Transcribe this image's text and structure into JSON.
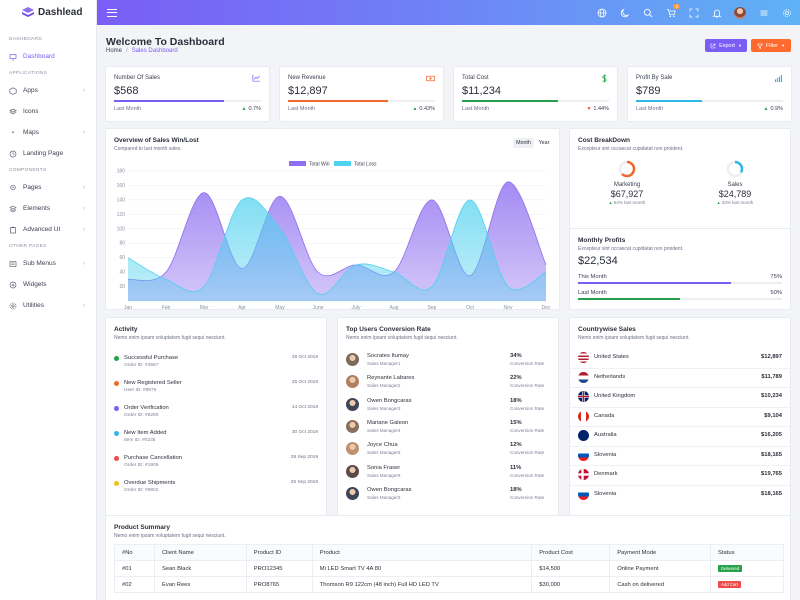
{
  "brand": {
    "name": "Dashlead"
  },
  "header": {
    "notification_count": "3"
  },
  "sidebar": {
    "sections": [
      {
        "title": "DASHBOARD",
        "items": [
          {
            "label": "Dashboard",
            "icon": "monitor-icon",
            "active": true,
            "chevron": false
          }
        ]
      },
      {
        "title": "APPLICATIONS",
        "items": [
          {
            "label": "Apps",
            "icon": "box-icon",
            "chevron": true
          },
          {
            "label": "Icons",
            "icon": "layers-icon",
            "chevron": false
          },
          {
            "label": "Maps",
            "icon": "map-pin-icon",
            "chevron": true
          },
          {
            "label": "Landing Page",
            "icon": "clock-icon",
            "chevron": false
          }
        ]
      },
      {
        "title": "COMPONENTS",
        "items": [
          {
            "label": "Pages",
            "icon": "map-marker-icon",
            "chevron": true
          },
          {
            "label": "Elements",
            "icon": "stack-icon",
            "chevron": true
          },
          {
            "label": "Advanced UI",
            "icon": "clipboard-icon",
            "chevron": true
          }
        ]
      },
      {
        "title": "OTHER PAGES",
        "items": [
          {
            "label": "Sub Menus",
            "icon": "list-icon",
            "chevron": true
          },
          {
            "label": "Widgets",
            "icon": "package-icon",
            "chevron": false
          },
          {
            "label": "Utilities",
            "icon": "settings-icon",
            "chevron": true
          }
        ]
      }
    ]
  },
  "page": {
    "title": "Welcome To Dashboard",
    "breadcrumb_home": "Home",
    "breadcrumb_sep": "/",
    "breadcrumb_current": "Sales Dashboard",
    "export_label": "Export",
    "filter_label": "Filter"
  },
  "stats": [
    {
      "label": "Number Of Sales",
      "value": "$568",
      "footer": "Last Month",
      "pct": "0.7%",
      "trend": "up",
      "color": "#7a5df5",
      "progress": 0.75,
      "icon": "line-chart-icon"
    },
    {
      "label": "New Revenue",
      "value": "$12,897",
      "footer": "Last Month",
      "pct": "0.43%",
      "trend": "up",
      "color": "#f0682c",
      "progress": 0.68,
      "icon": "cash-icon"
    },
    {
      "label": "Total Cost",
      "value": "$11,234",
      "footer": "Last Month",
      "pct": "1.44%",
      "trend": "down",
      "color": "#26a14b",
      "progress": 0.65,
      "icon": "dollar-icon"
    },
    {
      "label": "Profit By Sale",
      "value": "$789",
      "footer": "Last Month",
      "pct": "0.9%",
      "trend": "up",
      "color": "#2eb8e8",
      "progress": 0.45,
      "icon": "signal-icon"
    }
  ],
  "sales_chart": {
    "title": "Overview of Sales Win/Lost",
    "subtitle": "Compared to last month sales.",
    "toggle": [
      "Month",
      "Year"
    ]
  },
  "chart_data": {
    "type": "area",
    "categories": [
      "Jan",
      "Feb",
      "Mar",
      "Apr",
      "May",
      "June",
      "July",
      "Aug",
      "Sep",
      "Oct",
      "Nov",
      "Dec"
    ],
    "series": [
      {
        "name": "Total Win",
        "color": "#8f6ff0",
        "values": [
          30,
          40,
          150,
          45,
          145,
          40,
          50,
          40,
          140,
          35,
          165,
          50
        ]
      },
      {
        "name": "Total Loss",
        "color": "#4fd1ef",
        "values": [
          60,
          30,
          20,
          140,
          100,
          10,
          50,
          40,
          20,
          140,
          20,
          40
        ]
      }
    ],
    "ylim": [
      0,
      180
    ],
    "yticks": [
      20,
      40,
      60,
      80,
      100,
      120,
      140,
      160,
      180
    ],
    "legend": "top-center",
    "grid": true
  },
  "cost_breakdown": {
    "title": "Cost BreakDown",
    "subtitle": "Excepteur sint occaecat cupidatat non proident.",
    "items": [
      {
        "label": "Marketing",
        "value": "$67,927",
        "note": "54% last month",
        "trend": "up",
        "color": "#f0682c",
        "ring_fraction": 0.62
      },
      {
        "label": "Sales",
        "value": "$24,789",
        "note": "33% last month",
        "trend": "up",
        "color": "#2eb8e8",
        "ring_fraction": 0.33
      }
    ]
  },
  "monthly_profits": {
    "title": "Monthly Profits",
    "subtitle": "Excepteur sint occaecat cupidatat non proident.",
    "value": "$22,534",
    "rows": [
      {
        "label": "This Month",
        "pct": "75%",
        "fraction": 0.75,
        "color": "#7a5df5"
      },
      {
        "label": "Last Month",
        "pct": "50%",
        "fraction": 0.5,
        "color": "#26a14b"
      }
    ]
  },
  "activity": {
    "title": "Activity",
    "subtitle": "Nemo enim ipsam voluptatem fugit sequi nesciunt.",
    "items": [
      {
        "title": "Successful Purchase",
        "sub": "Order ID: #4567",
        "date": "29 Oct 2019",
        "color": "#26a14b"
      },
      {
        "title": "New Registered Seller",
        "sub": "User ID: #8976",
        "date": "25 Oct 2019",
        "color": "#f0682c"
      },
      {
        "title": "Order Verification",
        "sub": "Order ID: #6290",
        "date": "14 Oct 2019",
        "color": "#7a5df5"
      },
      {
        "title": "New Item Added",
        "sub": "Item ID: #0235",
        "date": "30 Oct 2019",
        "color": "#2eb8e8"
      },
      {
        "title": "Purchase Cancellation",
        "sub": "Order ID: #1905",
        "date": "28 Sep 2019",
        "color": "#ef4b4b"
      },
      {
        "title": "Overdue Shipments",
        "sub": "Order ID: #8902",
        "date": "25 Sep 2019",
        "color": "#f2c31b"
      }
    ]
  },
  "top_users": {
    "title": "Top Users Conversion Rate",
    "subtitle": "Nemo enim ipsam voluptatem fugit sequi nesciunt.",
    "rows": [
      {
        "name": "Socrates Itumay",
        "role": "Sales Manager1",
        "pct": "34%",
        "label": "Conversion Rate"
      },
      {
        "name": "Reynante Labares",
        "role": "Sales Manager2",
        "pct": "22%",
        "label": "Conversion Rate"
      },
      {
        "name": "Owen Bongcaras",
        "role": "Sales Manager3",
        "pct": "18%",
        "label": "Conversion Rate"
      },
      {
        "name": "Mariane Galeon",
        "role": "Sales Manager4",
        "pct": "15%",
        "label": "Conversion Rate"
      },
      {
        "name": "Joyce Chua",
        "role": "Sales Manager5",
        "pct": "12%",
        "label": "Conversion Rate"
      },
      {
        "name": "Sonia Fraser",
        "role": "Sales Manager6",
        "pct": "11%",
        "label": "Conversion Rate"
      },
      {
        "name": "Owen Bongcaras",
        "role": "Sales Manager3",
        "pct": "18%",
        "label": "Conversion Rate"
      }
    ]
  },
  "countries": {
    "title": "Countrywise Sales",
    "subtitle": "Nemo enim ipsam voluptatem fugit sequi nesciunt.",
    "rows": [
      {
        "name": "United States",
        "amount": "$12,897"
      },
      {
        "name": "Netherlands",
        "amount": "$11,789"
      },
      {
        "name": "United Kingdom",
        "amount": "$10,234"
      },
      {
        "name": "Canada",
        "amount": "$9,104"
      },
      {
        "name": "Australia",
        "amount": "$16,205"
      },
      {
        "name": "Slovenia",
        "amount": "$18,165"
      },
      {
        "name": "Denmark",
        "amount": "$19,765"
      },
      {
        "name": "Slovenia",
        "amount": "$18,165"
      }
    ]
  },
  "product_summary": {
    "title": "Product Summary",
    "subtitle": "Nemo enim ipsam voluptatem fugit sequi nesciunt.",
    "columns": [
      "#No",
      "Client Name",
      "Product ID",
      "Product",
      "Product Cost",
      "Payment Mode",
      "Status"
    ],
    "rows": [
      [
        "#01",
        "Sean Black",
        "PRO12345",
        "Mi LED Smart TV 4A 80",
        "$14,500",
        "Online Payment",
        "Delivered"
      ],
      [
        "#02",
        "Evan Rees",
        "PRO8765",
        "Thomson R9 122cm (48 inch) Full HD LED TV",
        "$30,000",
        "Cash on delivered",
        "Add Cart"
      ]
    ],
    "status_colors": {
      "Delivered": "#26a14b",
      "Add Cart": "#ef4b4b"
    }
  }
}
